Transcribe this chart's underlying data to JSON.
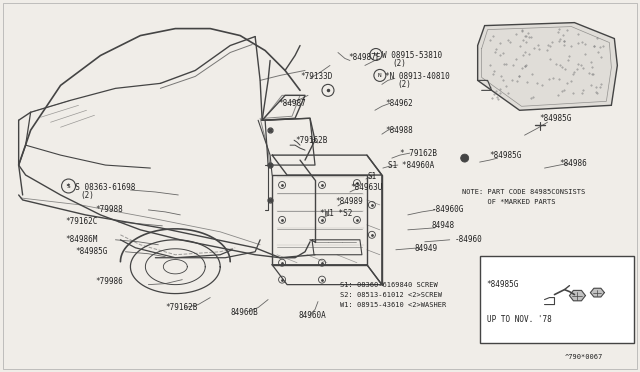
{
  "bg_color": "#f0ede8",
  "line_color": "#444444",
  "text_color": "#222222",
  "fig_width": 6.4,
  "fig_height": 3.72,
  "dpi": 100,
  "note_line1": "NOTE: PART CODE 84985CONSISTS",
  "note_line2": "      OF *MARKED PARTS",
  "legend": [
    "S1: 08360-6169840 SCREW",
    "S2: 08513-61012 <2>SCREW",
    "W1: 08915-43610 <2>WASHER"
  ],
  "diagram_id": "^790*0067",
  "inset_label": "UP TO NOV. '78",
  "inset_part": "*84985G"
}
